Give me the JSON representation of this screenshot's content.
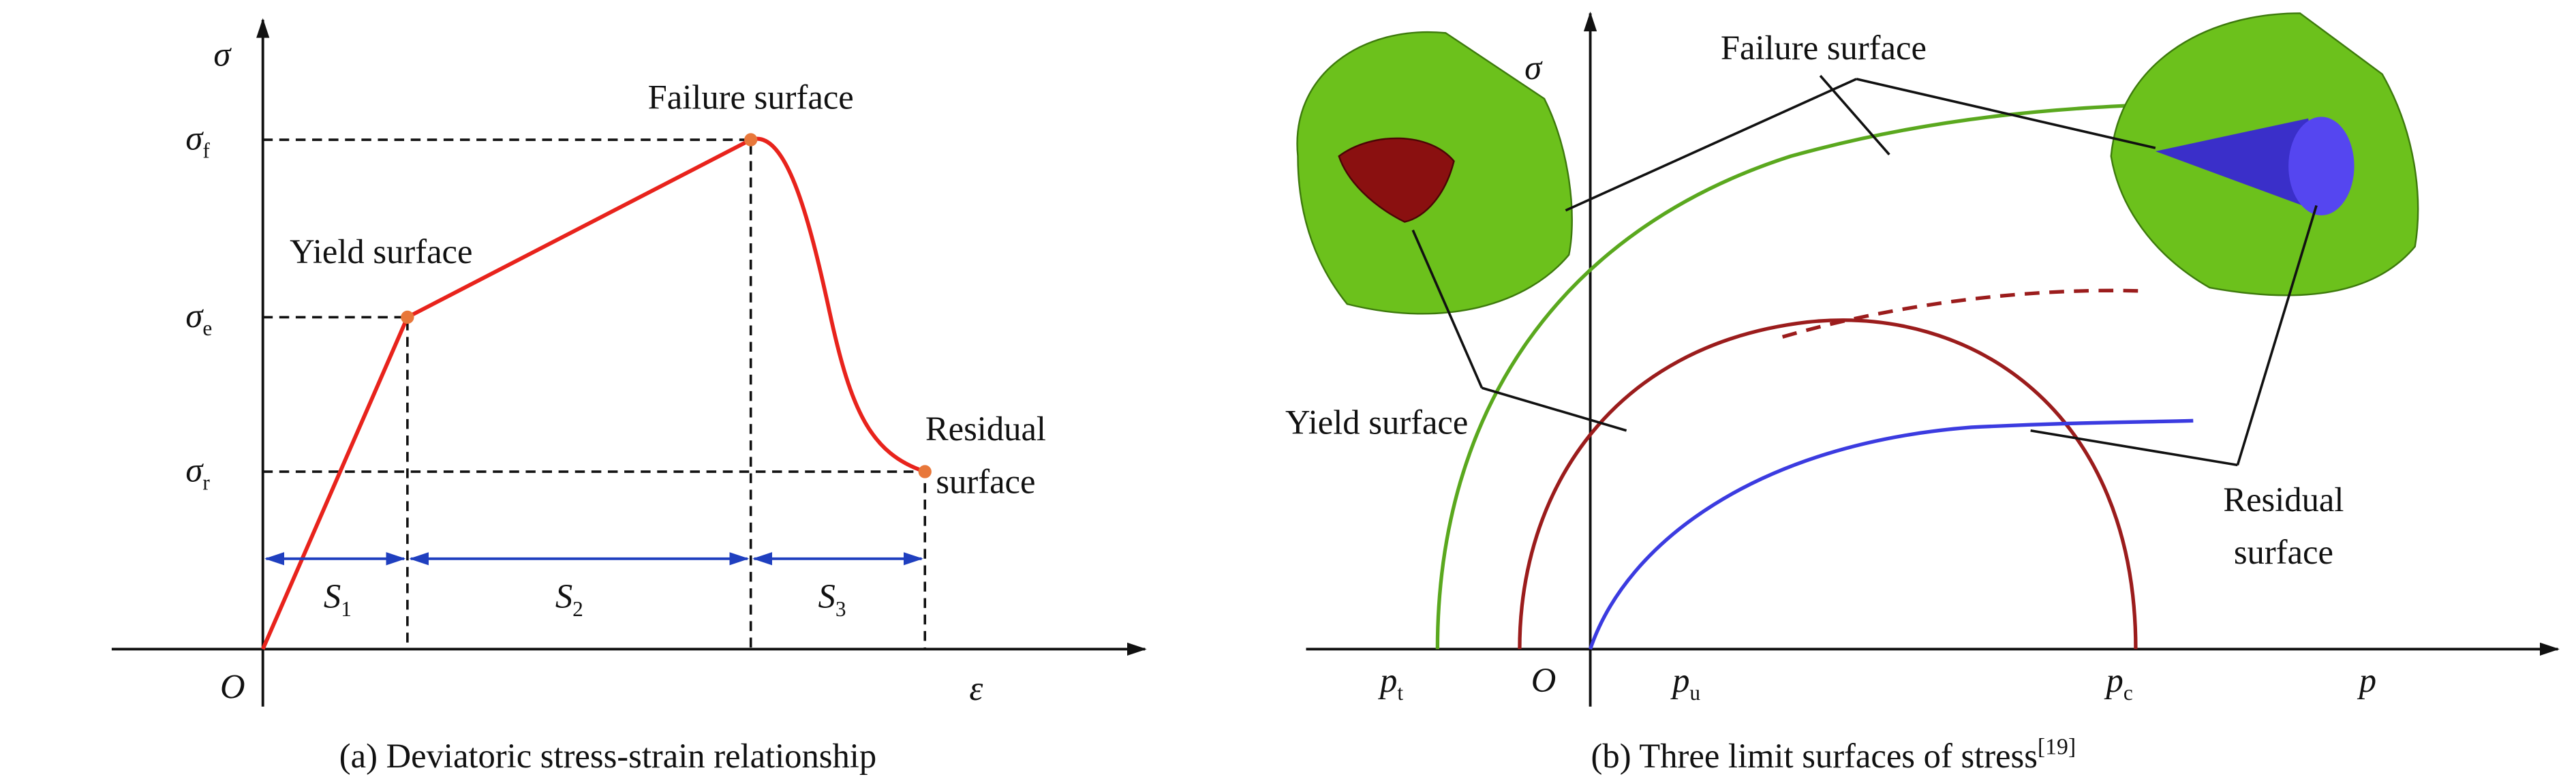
{
  "panel_a": {
    "axis_y": "σ",
    "axis_x": "ε",
    "origin": "O",
    "levels": [
      {
        "symbol": "σ",
        "sub": "f"
      },
      {
        "symbol": "σ",
        "sub": "e"
      },
      {
        "symbol": "σ",
        "sub": "r"
      }
    ],
    "failure_label": "Failure surface",
    "yield_label": "Yield surface",
    "residual_label": [
      "Residual",
      "surface"
    ],
    "stages": [
      {
        "symbol": "S",
        "sub": "1"
      },
      {
        "symbol": "S",
        "sub": "2"
      },
      {
        "symbol": "S",
        "sub": "3"
      }
    ],
    "caption": "(a) Deviatoric stress-strain relationship"
  },
  "panel_b": {
    "axis_y": "σ",
    "axis_x": "p",
    "origin": "O",
    "points": [
      {
        "symbol": "p",
        "sub": "t"
      },
      {
        "symbol": "p",
        "sub": "u"
      },
      {
        "symbol": "p",
        "sub": "c"
      }
    ],
    "failure_label": "Failure surface",
    "yield_label": "Yield surface",
    "residual_label": [
      "Residual",
      "surface"
    ],
    "caption": {
      "text": "(b) Three limit surfaces of stress",
      "ref": "[19]"
    }
  }
}
